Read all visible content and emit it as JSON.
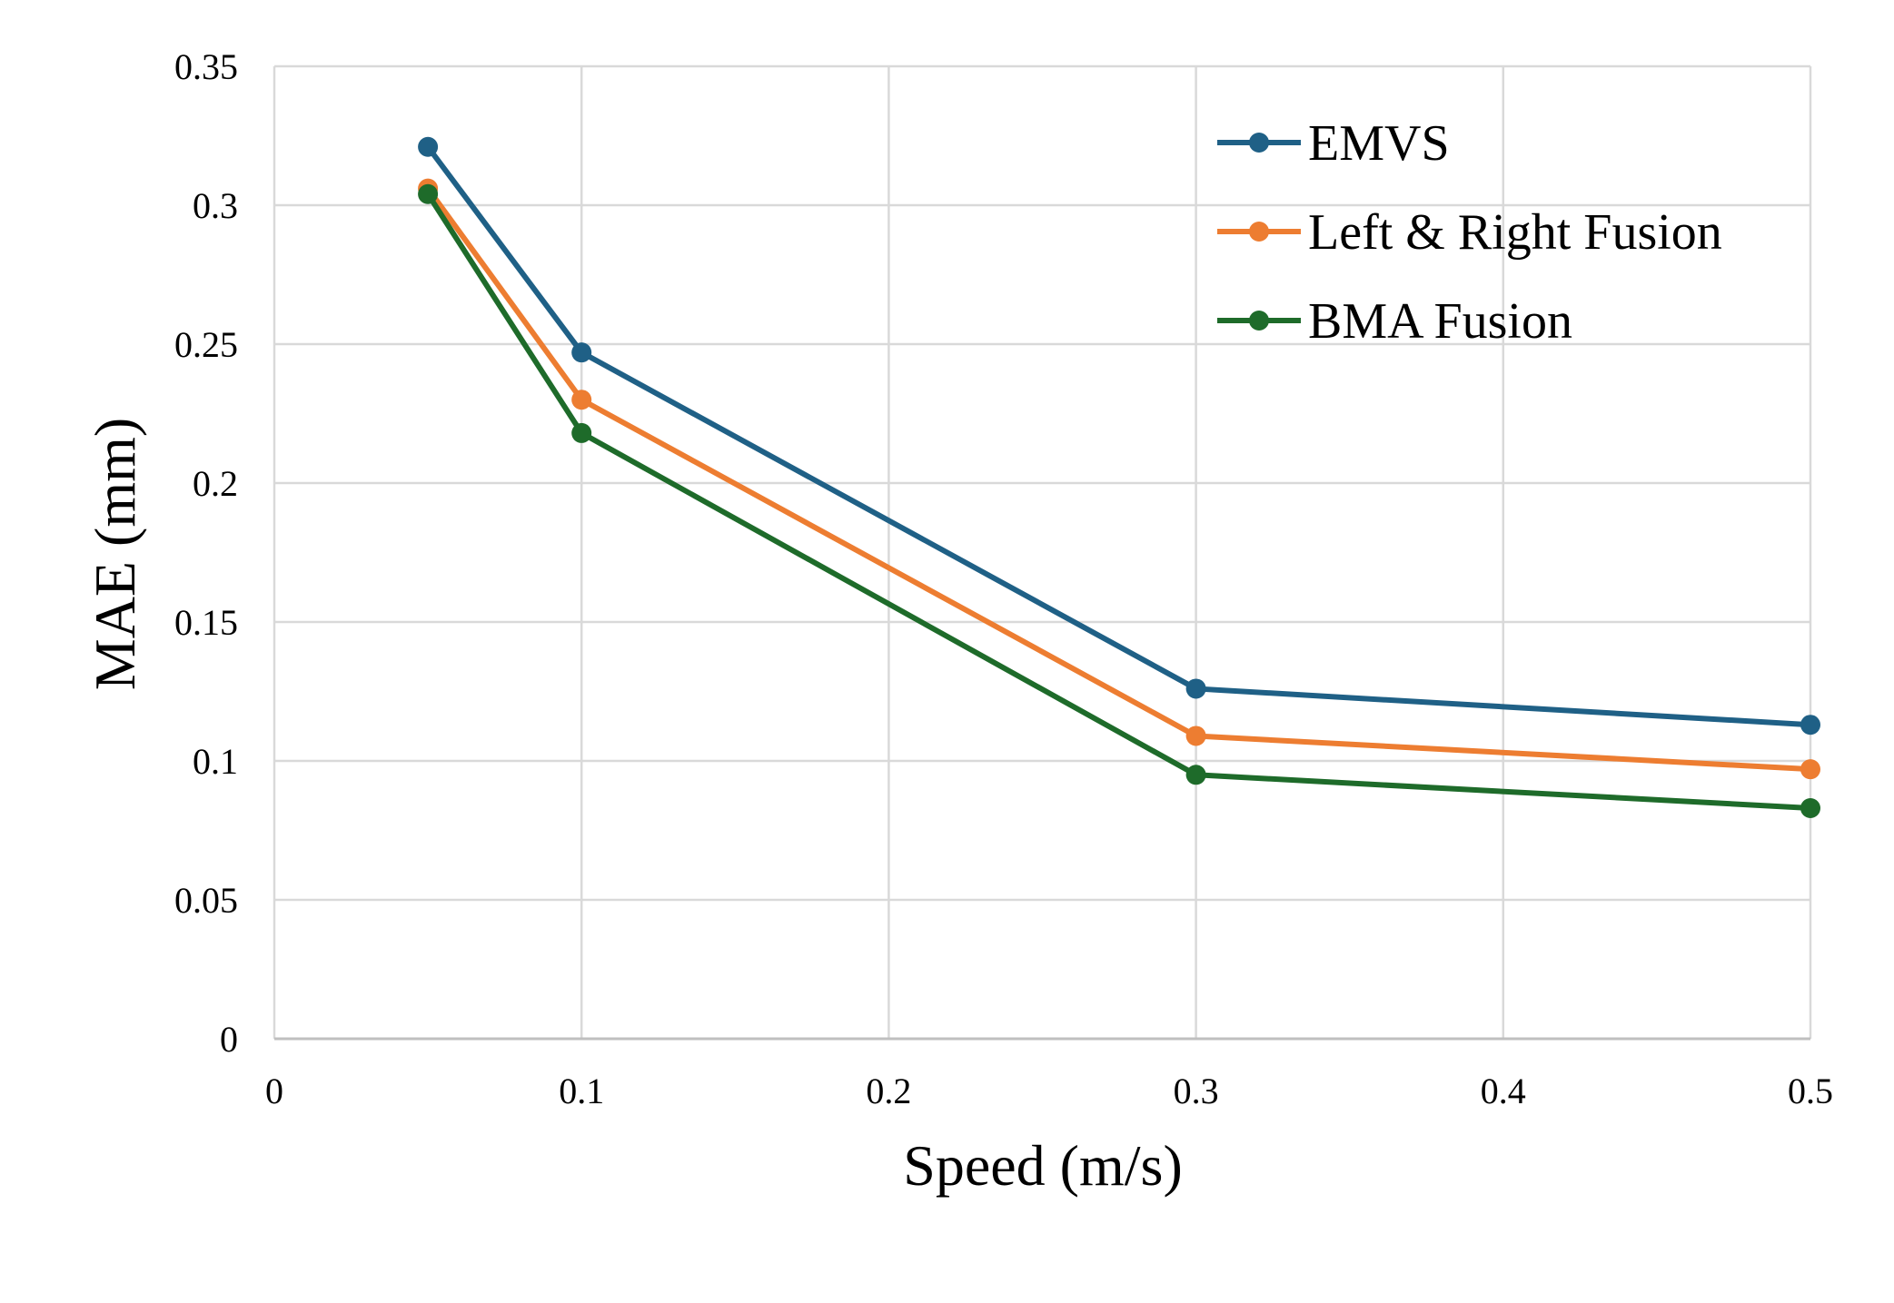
{
  "chart_data": {
    "type": "line",
    "title": "",
    "xlabel": "Speed (m/s)",
    "ylabel": "MAE (mm)",
    "xlim": [
      0,
      0.5
    ],
    "ylim": [
      0,
      0.35
    ],
    "xticks": [
      0,
      0.1,
      0.2,
      0.3,
      0.4,
      0.5
    ],
    "xtick_labels": [
      "0",
      "0.1",
      "0.2",
      "0.3",
      "0.4",
      "0.5"
    ],
    "yticks": [
      0,
      0.05,
      0.1,
      0.15,
      0.2,
      0.25,
      0.3,
      0.35
    ],
    "ytick_labels": [
      "0",
      "0.05",
      "0.1",
      "0.15",
      "0.2",
      "0.25",
      "0.3",
      "0.35"
    ],
    "grid": true,
    "legend_position": "top-right",
    "x": [
      0.05,
      0.1,
      0.3,
      0.5
    ],
    "series": [
      {
        "name": "EMVS",
        "color": "#1f6086",
        "values": [
          0.321,
          0.247,
          0.126,
          0.113
        ]
      },
      {
        "name": "Left & Right Fusion",
        "color": "#ed7d31",
        "values": [
          0.306,
          0.23,
          0.109,
          0.097
        ]
      },
      {
        "name": "BMA Fusion",
        "color": "#1e6b2a",
        "values": [
          0.304,
          0.218,
          0.095,
          0.083
        ]
      }
    ]
  }
}
